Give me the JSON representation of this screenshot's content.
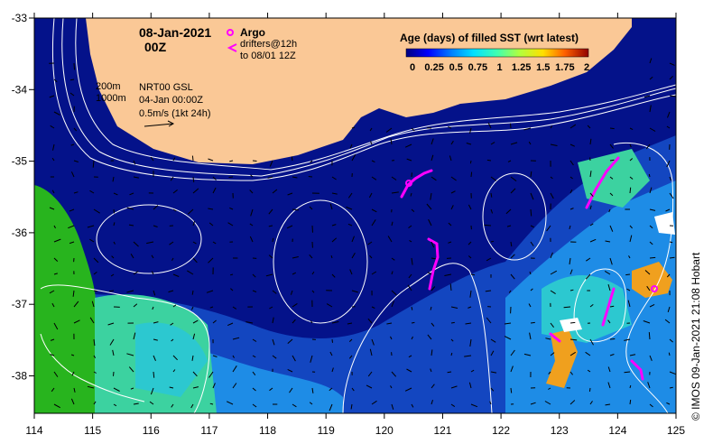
{
  "map": {
    "date_title": "08-Jan-2021",
    "time_title": "00Z",
    "product_line1": "NRT00 GSL",
    "product_line2": "04-Jan 00:00Z",
    "velocity_scale": "0.5m/s (1kt 24h)",
    "contour_200": "200m",
    "contour_1000": "1000m",
    "argo_label": "Argo",
    "drifters_line1": "drifters@12h",
    "drifters_line2": "to 08/01 12Z",
    "credit": "© IMOS 09-Jan-2021 21:08 Hobart",
    "x_ticks": [
      "114",
      "115",
      "116",
      "117",
      "118",
      "119",
      "120",
      "121",
      "122",
      "123",
      "124",
      "125"
    ],
    "y_ticks": [
      "-33",
      "-34",
      "-35",
      "-36",
      "-37",
      "-38"
    ]
  },
  "colorbar": {
    "title": "Age (days) of filled SST (wrt latest)",
    "labels": [
      "0",
      "0.25",
      "0.5",
      "0.75",
      "1",
      "1.25",
      "1.5",
      "1.75",
      "2"
    ]
  },
  "colors": {
    "land": "#fac896",
    "deep_blue": "#04128a",
    "mid_blue": "#1346c0",
    "light_blue": "#1e8ce6",
    "cyan": "#2cc8d0",
    "teal": "#3cd2a0",
    "green": "#28b41e",
    "orange": "#f0a01e",
    "drifter": "#ff00ff",
    "contour": "#ffffff"
  }
}
